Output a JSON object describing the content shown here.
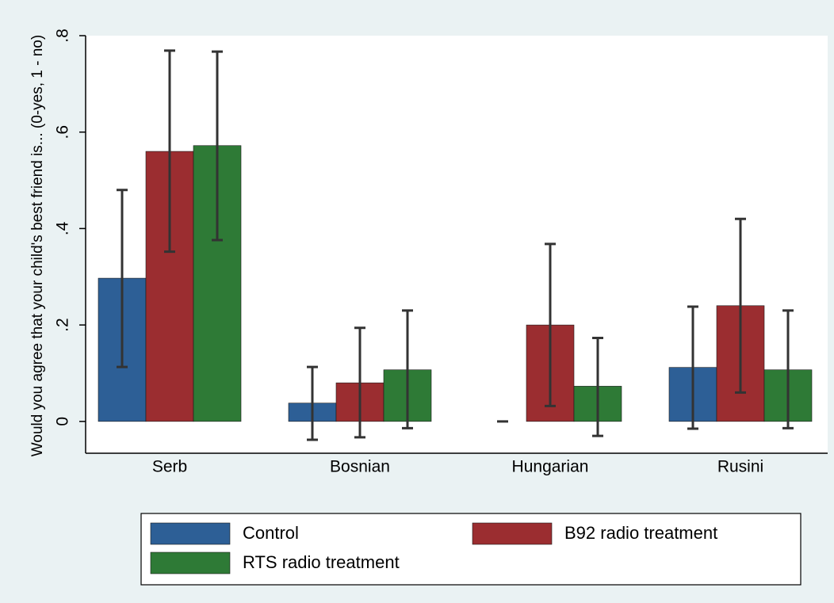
{
  "chart_data": {
    "type": "bar",
    "y_label": "Would you agree that your child's best friend is... (0-yes, 1 - no)",
    "categories": [
      "Serb",
      "Bosnian",
      "Hungarian",
      "Rusini"
    ],
    "series": [
      {
        "name": "Control",
        "color": "#2d5f96",
        "values": [
          0.297,
          0.038,
          0,
          0.112
        ],
        "ci_low": [
          0.113,
          -0.038,
          0,
          -0.015
        ],
        "ci_high": [
          0.48,
          0.113,
          0,
          0.238
        ]
      },
      {
        "name": "B92 radio treatment",
        "color": "#9b2d30",
        "values": [
          0.56,
          0.08,
          0.2,
          0.24
        ],
        "ci_low": [
          0.352,
          -0.033,
          0.032,
          0.06
        ],
        "ci_high": [
          0.769,
          0.194,
          0.368,
          0.42
        ]
      },
      {
        "name": "RTS radio treatment",
        "color": "#2e7a36",
        "values": [
          0.572,
          0.107,
          0.073,
          0.107
        ],
        "ci_low": [
          0.376,
          -0.014,
          -0.03,
          -0.014
        ],
        "ci_high": [
          0.767,
          0.23,
          0.173,
          0.23
        ]
      }
    ],
    "ylim": [
      -0.066,
      0.8
    ],
    "yticks": [
      0,
      {
        "value": 0.2,
        "label": ".2"
      },
      {
        "value": 0.4,
        "label": ".4"
      },
      {
        "value": 0.6,
        "label": ".6"
      },
      {
        "value": 0.8,
        "label": ".8"
      }
    ],
    "grid": false,
    "legend": "bottom"
  }
}
